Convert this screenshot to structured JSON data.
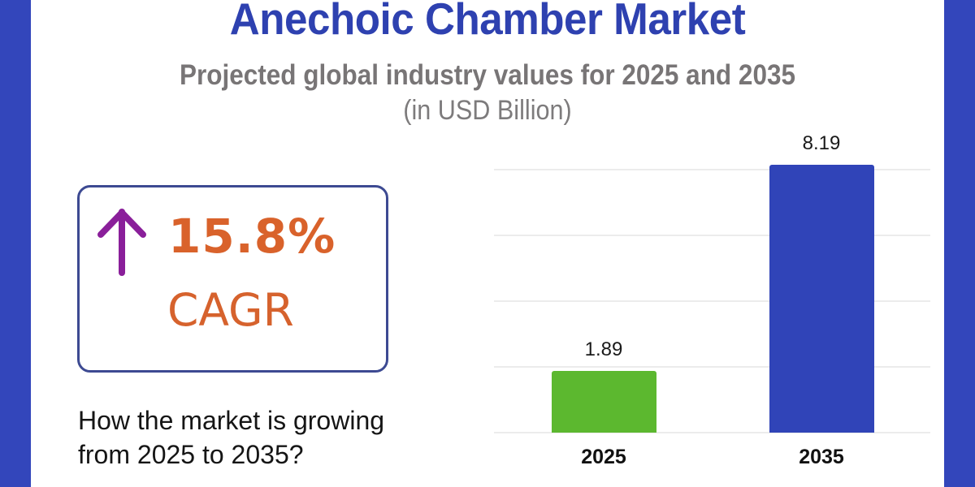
{
  "header": {
    "title": "Anechoic Chamber Market",
    "subtitle": "Projected global industry values for 2025 and 2035",
    "unit": "(in USD Billion)"
  },
  "cagr": {
    "icon": "arrow-up-icon",
    "value": "15.8%",
    "label": "CAGR"
  },
  "question": {
    "line1": "How the market is growing",
    "line2": "from 2025 to 2035?"
  },
  "colors": {
    "frame": "#3346bb",
    "title": "#2e41b0",
    "subtitle": "#787576",
    "cagr_text": "#d9622b",
    "arrow": "#8a1f9a",
    "box_border": "#3d4a92",
    "bar_2025": "#5cb82f",
    "bar_2035": "#3044b8",
    "gridline": "#ececec"
  },
  "chart_data": {
    "type": "bar",
    "title": "Anechoic Chamber Market",
    "subtitle": "Projected global industry values for 2025 and 2035 (in USD Billion)",
    "categories": [
      "2025",
      "2035"
    ],
    "values": [
      1.89,
      8.19
    ],
    "value_labels": [
      "1.89",
      "8.19"
    ],
    "bar_colors": [
      "#5cb82f",
      "#3044b8"
    ],
    "xlabel": "",
    "ylabel": "USD Billion",
    "ylim": [
      0,
      8.19
    ],
    "gridlines": [
      0,
      2,
      4,
      6,
      8
    ],
    "grid": true,
    "y_tick_labels_visible": false,
    "legend": null
  }
}
